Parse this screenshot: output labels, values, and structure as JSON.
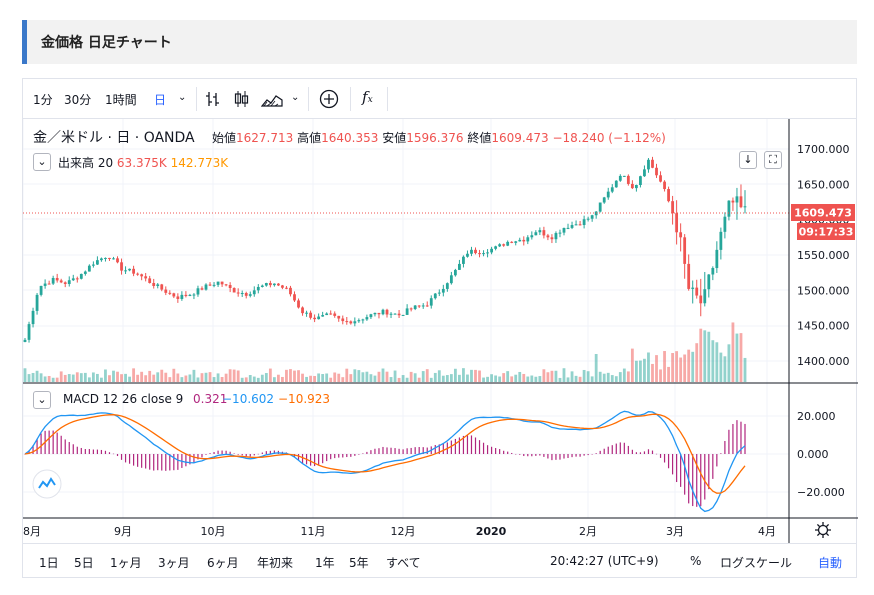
{
  "header": {
    "title": "金価格 日足チャート"
  },
  "toolbar": {
    "intervals": [
      "1分",
      "30分",
      "1時間",
      "日"
    ],
    "active_interval": "日"
  },
  "legend": {
    "symbol": "金／米ドル · 日 · OANDA",
    "open_label": "始値",
    "open": "1627.713",
    "high_label": "高値",
    "high": "1640.353",
    "low_label": "安値",
    "low": "1596.376",
    "close_label": "終値",
    "close": "1609.473",
    "change": "−18.240 (−1.12%)"
  },
  "volume_legend": {
    "label": "出来高 20",
    "v1": "63.375K",
    "v2": "142.773K"
  },
  "macd_legend": {
    "label": "MACD 12 26 close 9",
    "v1": "0.321",
    "v2": "−10.602",
    "v3": "−10.923"
  },
  "price_badge": {
    "price": "1609.473",
    "countdown": "09:17:33"
  },
  "colors": {
    "up": "#26a69a",
    "down": "#ef5350",
    "macd": "#2196f3",
    "signal": "#ff6d00",
    "hist": "#b0267e"
  },
  "bottom": {
    "ranges": [
      "1日",
      "5日",
      "1ヶ月",
      "3ヶ月",
      "6ヶ月",
      "年初来",
      "1年",
      "5年",
      "すべて"
    ],
    "time": "20:42:27 (UTC+9)",
    "percent": "%",
    "log": "ログスケール",
    "auto": "自動"
  },
  "chart_data": [
    {
      "type": "candlestick",
      "title": "",
      "y_axis_labels": [
        "1700.000",
        "1650.000",
        "1600.000",
        "1550.000",
        "1500.000",
        "1450.000",
        "1400.000"
      ],
      "x_axis_labels": [
        "8月",
        "9月",
        "10月",
        "11月",
        "12月",
        "2020",
        "2月",
        "3月",
        "4月"
      ],
      "ylim": [
        1370,
        1720
      ],
      "weekly_close": [
        1430,
        1505,
        1515,
        1510,
        1522,
        1540,
        1550,
        1530,
        1525,
        1512,
        1500,
        1490,
        1495,
        1505,
        1512,
        1500,
        1495,
        1505,
        1510,
        1500,
        1470,
        1460,
        1465,
        1455,
        1458,
        1465,
        1470,
        1465,
        1475,
        1480,
        1500,
        1525,
        1555,
        1555,
        1560,
        1570,
        1572,
        1585,
        1575,
        1590,
        1595,
        1605,
        1635,
        1665,
        1645,
        1685,
        1650,
        1600,
        1495,
        1480,
        1560,
        1625,
        1609
      ]
    },
    {
      "type": "bar",
      "title": "出来高 20"
    },
    {
      "type": "line",
      "title": "MACD 12 26 close 9",
      "y_axis_labels": [
        "20.000",
        "0.000",
        "−20.000"
      ],
      "ylim": [
        -30,
        27
      ]
    }
  ]
}
